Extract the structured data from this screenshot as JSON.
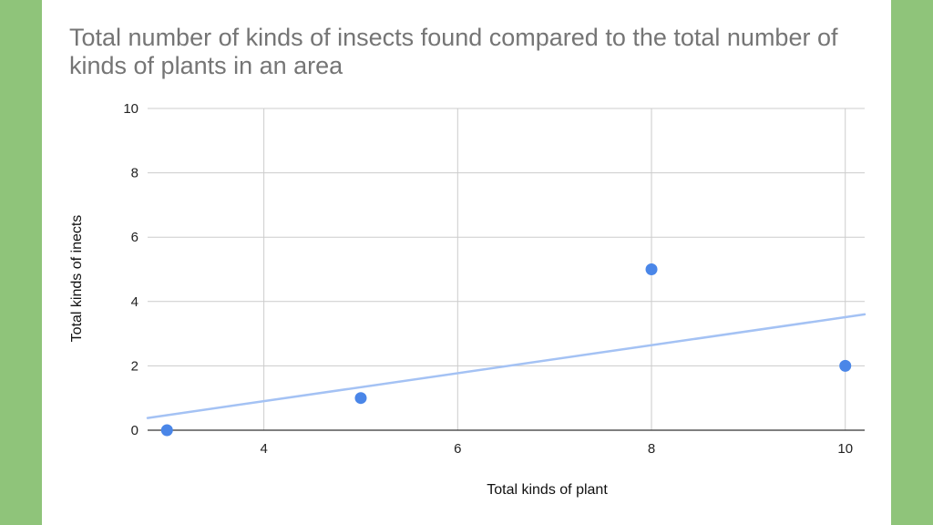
{
  "chart_data": {
    "type": "scatter",
    "title": "Total number of kinds of insects found compared to the total number of  kinds of plants in an area",
    "xlabel": "Total kinds of plant",
    "ylabel": "Total kinds of inects",
    "xlim": [
      2.8,
      10.2
    ],
    "ylim": [
      0,
      10
    ],
    "xticks": [
      4,
      6,
      8,
      10
    ],
    "yticks": [
      0,
      2,
      4,
      6,
      8,
      10
    ],
    "grid": true,
    "series": [
      {
        "x": [
          3,
          5,
          8,
          10
        ],
        "y": [
          0,
          1,
          5,
          2
        ],
        "color": "#4a86e8"
      }
    ],
    "trendline": {
      "type": "linear",
      "from": [
        2.8,
        0.38
      ],
      "to": [
        10.2,
        3.6
      ],
      "color": "#a4c2f4"
    }
  },
  "colors": {
    "background_border": "#8fc47a",
    "slide": "#ffffff",
    "title": "#757575",
    "grid": "#cccccc",
    "axis": "#333333"
  }
}
